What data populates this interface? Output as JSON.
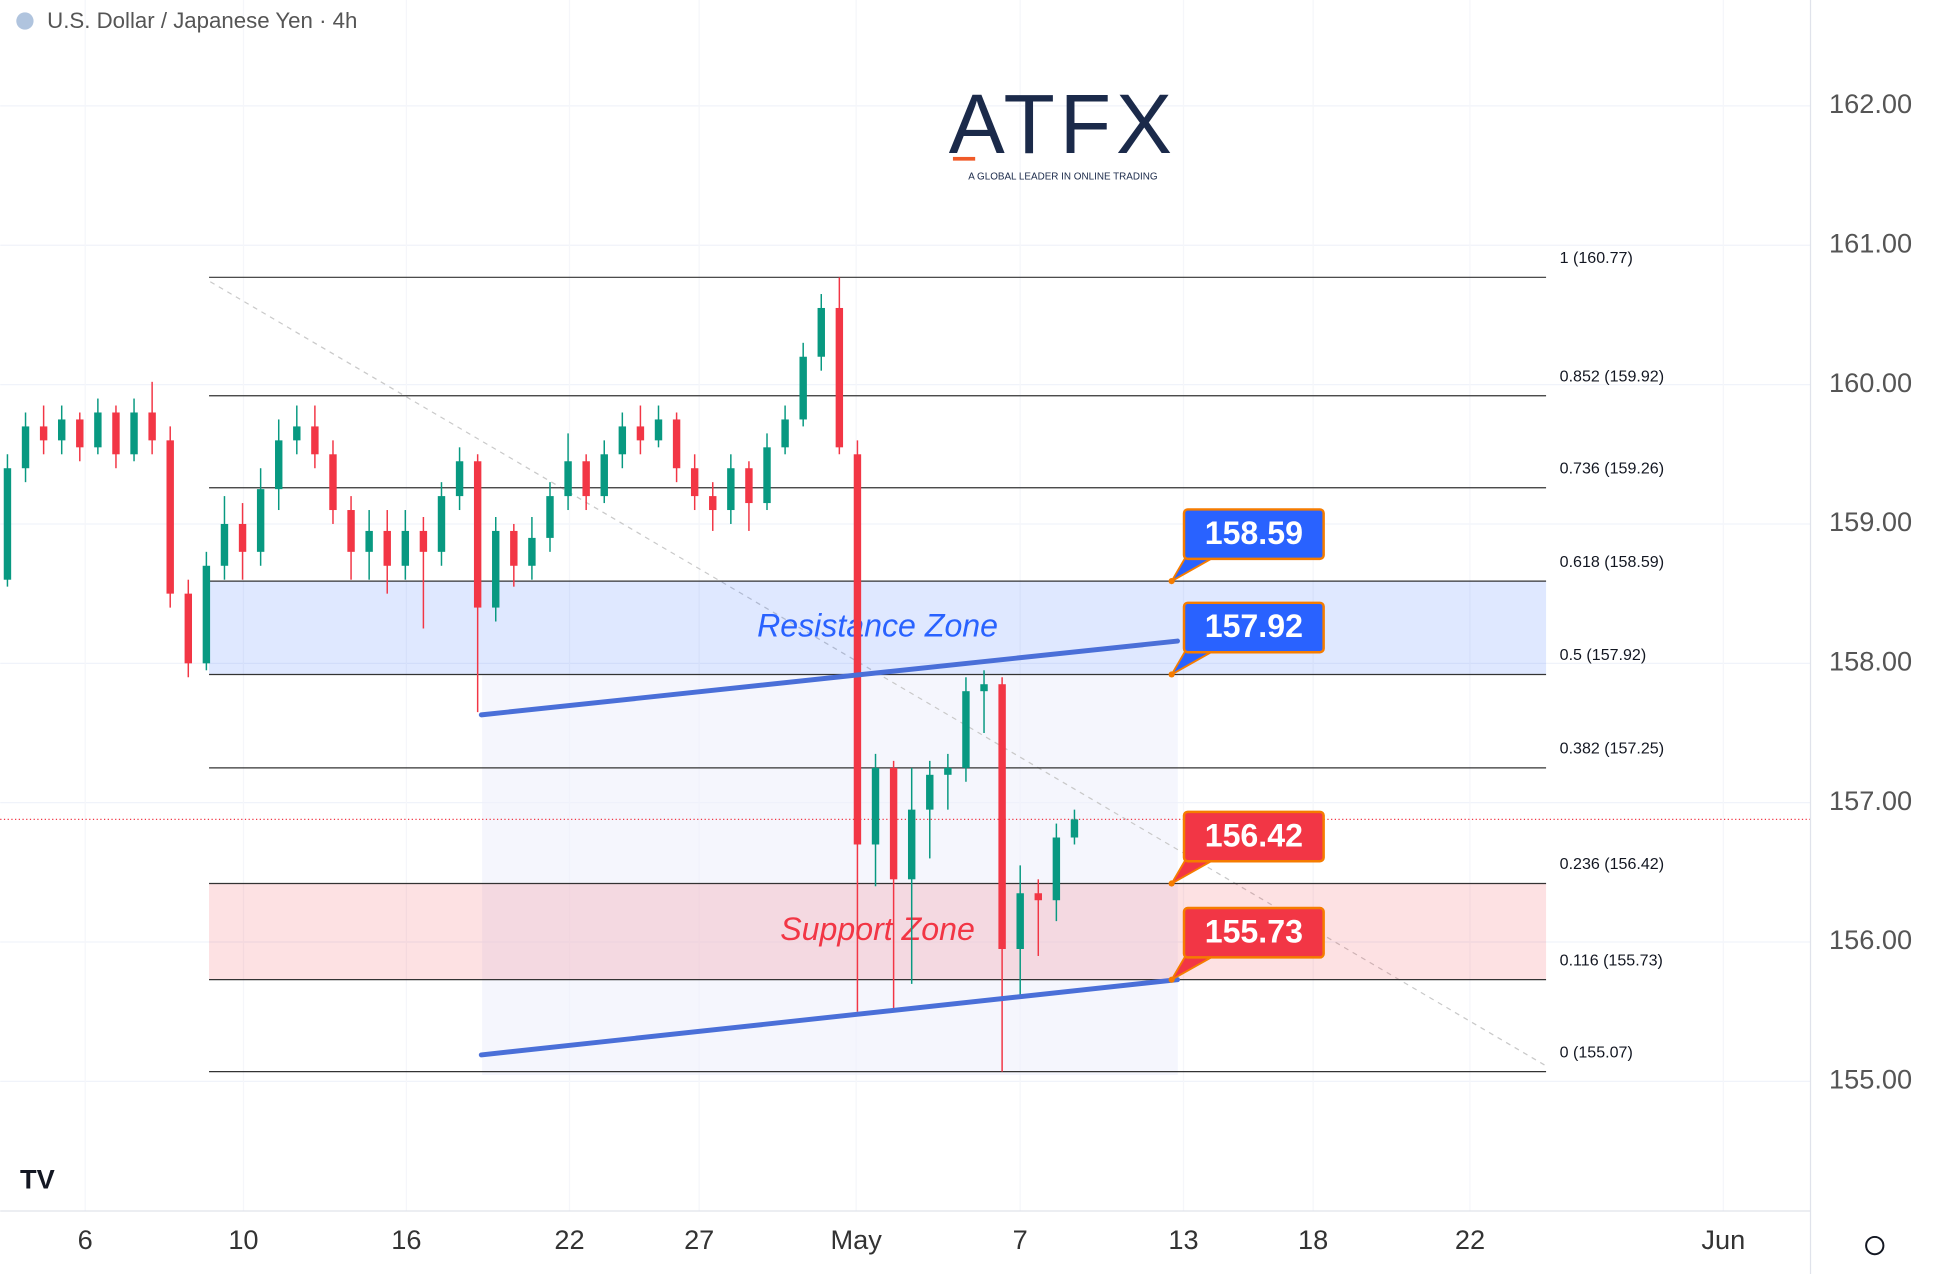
{
  "chart_data": {
    "type": "candlestick",
    "title": "U.S. Dollar / Japanese Yen · 4h",
    "watermark": {
      "text": "ATFX",
      "tagline": "A GLOBAL LEADER IN ONLINE TRADING"
    },
    "up_color": "#089981",
    "down_color": "#f23645",
    "open": [
      158.6,
      159.4,
      159.7,
      159.6,
      159.75,
      159.55,
      159.8,
      159.5,
      159.8,
      159.6,
      158.5,
      158.0,
      158.7,
      159.0,
      158.8,
      159.25,
      159.6,
      159.7,
      159.5,
      159.1,
      158.8,
      158.95,
      158.7,
      158.95,
      158.8,
      159.2,
      159.45,
      158.4,
      158.95,
      158.7,
      158.9,
      159.2,
      159.45,
      159.2,
      159.5,
      159.7,
      159.6,
      159.75,
      159.4,
      159.2,
      159.1,
      159.4,
      159.15,
      159.55,
      159.75,
      160.2,
      160.55,
      159.5,
      156.7,
      157.25,
      156.45,
      156.95,
      157.2,
      157.25,
      157.8,
      157.85,
      155.95,
      156.35,
      156.3,
      156.75
    ],
    "high": [
      159.5,
      159.8,
      159.85,
      159.85,
      159.8,
      159.9,
      159.85,
      159.9,
      160.02,
      159.7,
      158.6,
      158.8,
      159.2,
      159.15,
      159.4,
      159.75,
      159.85,
      159.85,
      159.6,
      159.2,
      159.1,
      159.1,
      159.1,
      159.05,
      159.3,
      159.55,
      159.5,
      159.05,
      159.0,
      159.05,
      159.3,
      159.65,
      159.5,
      159.6,
      159.8,
      159.85,
      159.85,
      159.8,
      159.5,
      159.3,
      159.5,
      159.45,
      159.65,
      159.85,
      160.3,
      160.65,
      160.77,
      159.6,
      157.35,
      157.3,
      157.25,
      157.3,
      157.35,
      157.9,
      157.95,
      157.9,
      156.55,
      156.45,
      156.85,
      156.95
    ],
    "low": [
      158.55,
      159.3,
      159.5,
      159.5,
      159.45,
      159.5,
      159.4,
      159.45,
      159.5,
      158.4,
      157.9,
      157.95,
      158.6,
      158.6,
      158.7,
      159.1,
      159.5,
      159.4,
      159.0,
      158.6,
      158.6,
      158.5,
      158.6,
      158.25,
      158.7,
      159.1,
      157.65,
      158.3,
      158.55,
      158.6,
      158.8,
      159.1,
      159.1,
      159.15,
      159.4,
      159.5,
      159.55,
      159.3,
      159.1,
      158.95,
      159.0,
      158.95,
      159.1,
      159.5,
      159.7,
      160.1,
      159.5,
      155.5,
      156.4,
      155.5,
      155.7,
      156.6,
      156.95,
      157.15,
      157.5,
      155.07,
      155.6,
      155.9,
      156.15,
      156.7
    ],
    "close": [
      159.4,
      159.7,
      159.6,
      159.75,
      159.55,
      159.8,
      159.5,
      159.8,
      159.6,
      158.5,
      158.0,
      158.7,
      159.0,
      158.8,
      159.25,
      159.6,
      159.7,
      159.5,
      159.1,
      158.8,
      158.95,
      158.7,
      158.95,
      158.8,
      159.2,
      159.45,
      158.4,
      158.95,
      158.7,
      158.9,
      159.2,
      159.45,
      159.2,
      159.5,
      159.7,
      159.6,
      159.75,
      159.4,
      159.2,
      159.1,
      159.4,
      159.15,
      159.55,
      159.75,
      160.2,
      160.55,
      159.55,
      156.7,
      157.25,
      156.45,
      156.95,
      157.2,
      157.25,
      157.8,
      157.85,
      155.95,
      156.35,
      156.3,
      156.75,
      156.88
    ],
    "last_price": 156.88,
    "xlim": [
      -0.4,
      99.7
    ],
    "xticks": [
      {
        "value": 4.3,
        "label": "6"
      },
      {
        "value": 13.05,
        "label": "10"
      },
      {
        "value": 22.06,
        "label": "16"
      },
      {
        "value": 31.08,
        "label": "22"
      },
      {
        "value": 38.25,
        "label": "27"
      },
      {
        "value": 46.93,
        "label": "May"
      },
      {
        "value": 56.0,
        "label": "7"
      },
      {
        "value": 65.03,
        "label": "13"
      },
      {
        "value": 72.2,
        "label": "18"
      },
      {
        "value": 80.87,
        "label": "22"
      },
      {
        "value": 94.88,
        "label": "Jun"
      }
    ],
    "ylim": [
      154.07,
      162.76
    ],
    "yticks": [
      {
        "value": 155,
        "label": "155.00"
      },
      {
        "value": 156,
        "label": "156.00"
      },
      {
        "value": 157,
        "label": "157.00"
      },
      {
        "value": 158,
        "label": "158.00"
      },
      {
        "value": 159,
        "label": "159.00"
      },
      {
        "value": 160,
        "label": "160.00"
      },
      {
        "value": 161,
        "label": "161.00"
      },
      {
        "value": 162,
        "label": "162.00"
      }
    ],
    "grid": true,
    "fib_levels": [
      {
        "value": 160.77,
        "label": "1 (160.77)"
      },
      {
        "value": 159.92,
        "label": "0.852 (159.92)"
      },
      {
        "value": 159.26,
        "label": "0.736 (159.26)"
      },
      {
        "value": 158.59,
        "label": "0.618 (158.59)"
      },
      {
        "value": 157.92,
        "label": "0.5 (157.92)"
      },
      {
        "value": 157.25,
        "label": "0.382 (157.25)"
      },
      {
        "value": 156.42,
        "label": "0.236 (156.42)"
      },
      {
        "value": 155.73,
        "label": "0.116 (155.73)"
      },
      {
        "value": 155.07,
        "label": "0 (155.07)"
      }
    ],
    "zones": [
      {
        "label": "Resistance Zone",
        "low": 157.92,
        "high": 158.59,
        "color": "#2962ff"
      },
      {
        "label": "Support Zone",
        "low": 155.73,
        "high": 156.42,
        "color": "#f23645"
      }
    ],
    "trendlines": [
      {
        "from": [
          26.2,
          157.63
        ],
        "to": [
          64.7,
          158.16
        ],
        "color": "#4a6fd8"
      },
      {
        "from": [
          26.2,
          155.19
        ],
        "to": [
          64.7,
          155.73
        ],
        "color": "#4a6fd8"
      }
    ],
    "callouts": [
      {
        "value": 158.59,
        "color": "#2962ff"
      },
      {
        "value": 157.92,
        "color": "#2962ff"
      },
      {
        "value": 156.42,
        "color": "#f23645"
      },
      {
        "value": 155.73,
        "color": "#f23645"
      }
    ]
  }
}
